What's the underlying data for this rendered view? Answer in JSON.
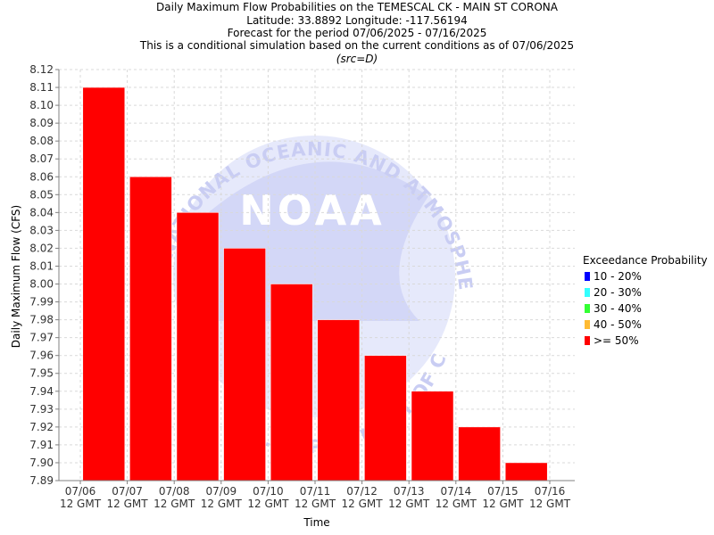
{
  "chart_data": {
    "type": "bar",
    "title_lines": [
      "Daily Maximum Flow Probabilities on the TEMESCAL CK - MAIN ST CORONA",
      "Latitude: 33.8892 Longitude: -117.56194",
      "Forecast for the period 07/06/2025 - 07/16/2025",
      "This is a conditional simulation based on the current conditions as of 07/06/2025"
    ],
    "subtitle": "(src=D)",
    "xlabel": "Time",
    "ylabel": "Daily Maximum Flow (CFS)",
    "ylim": [
      7.89,
      8.12
    ],
    "y_ticks": [
      "7.89",
      "7.90",
      "7.91",
      "7.92",
      "7.93",
      "7.94",
      "7.95",
      "7.96",
      "7.97",
      "7.98",
      "7.99",
      "8.00",
      "8.01",
      "8.02",
      "8.03",
      "8.04",
      "8.05",
      "8.06",
      "8.07",
      "8.08",
      "8.09",
      "8.10",
      "8.11",
      "8.12"
    ],
    "x_ticks": [
      {
        "date": "07/06",
        "hour": "12 GMT"
      },
      {
        "date": "07/07",
        "hour": "12 GMT"
      },
      {
        "date": "07/08",
        "hour": "12 GMT"
      },
      {
        "date": "07/09",
        "hour": "12 GMT"
      },
      {
        "date": "07/10",
        "hour": "12 GMT"
      },
      {
        "date": "07/11",
        "hour": "12 GMT"
      },
      {
        "date": "07/12",
        "hour": "12 GMT"
      },
      {
        "date": "07/13",
        "hour": "12 GMT"
      },
      {
        "date": "07/14",
        "hour": "12 GMT"
      },
      {
        "date": "07/15",
        "hour": "12 GMT"
      },
      {
        "date": "07/16",
        "hour": "12 GMT"
      }
    ],
    "series": [
      {
        "name": ">= 50%",
        "color": "#ff0000",
        "values": [
          8.11,
          8.06,
          8.04,
          8.02,
          8.0,
          7.98,
          7.96,
          7.94,
          7.92,
          7.9
        ]
      }
    ],
    "legend": {
      "title": "Exceedance Probability",
      "placement": "right",
      "entries": [
        {
          "label": "10 - 20%",
          "color": "#0000ff"
        },
        {
          "label": "20 - 30%",
          "color": "#33ffff"
        },
        {
          "label": "30 - 40%",
          "color": "#33ff33"
        },
        {
          "label": "40 - 50%",
          "color": "#ffbb33"
        },
        {
          "label": ">= 50%",
          "color": "#ff0000"
        }
      ]
    },
    "grid": true,
    "watermark": {
      "logo": "NOAA",
      "arc_top": "NATIONAL OCEANIC AND ATMOSPHERIC ADMINISTRATION",
      "arc_bottom": "U.S. DEPARTMENT OF COMMERCE",
      "color": "#c9cdf3"
    }
  }
}
